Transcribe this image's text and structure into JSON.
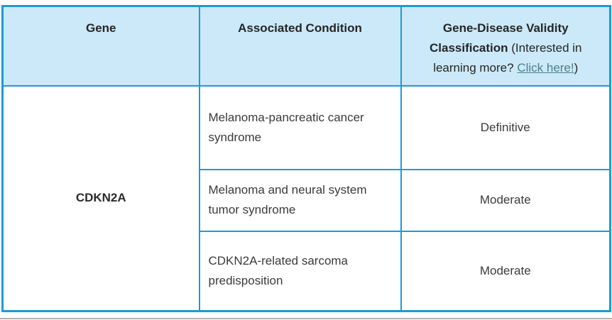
{
  "table": {
    "headers": {
      "gene": "Gene",
      "condition": "Associated Condition",
      "validity_bold": "Gene-Disease Validity Classification",
      "validity_note_prefix": " (Interested in learning more? ",
      "validity_link": "Click here!",
      "validity_note_suffix": ")"
    },
    "gene_value": "CDKN2A",
    "rows": [
      {
        "condition": "Melanoma-pancreatic cancer syndrome",
        "classification": "Definitive"
      },
      {
        "condition": "Melanoma and neural system tumor syndrome",
        "classification": "Moderate"
      },
      {
        "condition": "CDKN2A-related sarcoma predisposition",
        "classification": "Moderate"
      }
    ],
    "colors": {
      "border_blue": "#1b9bd7",
      "header_background": "#cbe9f8",
      "link_teal": "#4f7f8a",
      "header_text": "#262626",
      "body_text": "#3b3b3b",
      "bottom_rule_gray": "#b0b0b0"
    }
  }
}
